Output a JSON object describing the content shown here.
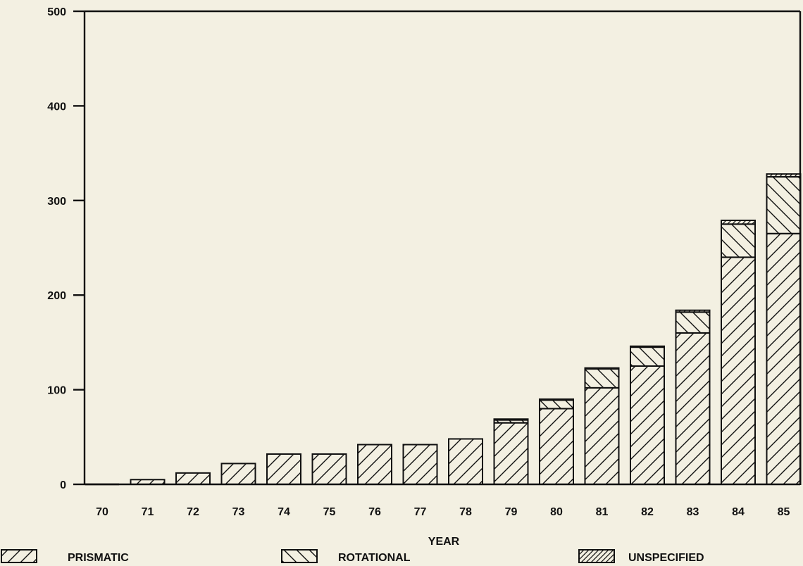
{
  "chart_data": {
    "type": "bar",
    "stacked": true,
    "title": "",
    "xlabel": "YEAR",
    "ylabel": "",
    "ylim": [
      0,
      500
    ],
    "yticks": [
      0,
      100,
      200,
      300,
      400,
      500
    ],
    "grid": false,
    "legend_position": "bottom",
    "categories": [
      "70",
      "71",
      "72",
      "73",
      "74",
      "75",
      "76",
      "77",
      "78",
      "79",
      "80",
      "81",
      "82",
      "83",
      "84",
      "85"
    ],
    "series": [
      {
        "name": "PRISMATIC",
        "pattern": "diagonal-forward",
        "values": [
          0,
          5,
          12,
          22,
          32,
          32,
          42,
          42,
          48,
          65,
          80,
          102,
          125,
          160,
          240,
          265
        ]
      },
      {
        "name": "ROTATIONAL",
        "pattern": "diagonal-back",
        "values": [
          0,
          0,
          0,
          0,
          0,
          0,
          0,
          0,
          0,
          3,
          9,
          20,
          20,
          22,
          35,
          60
        ]
      },
      {
        "name": "UNSPECIFIED",
        "pattern": "diagonal-dense",
        "values": [
          0,
          0,
          0,
          0,
          0,
          0,
          0,
          0,
          0,
          1,
          1,
          1,
          1,
          2,
          4,
          3
        ]
      }
    ],
    "colors": {
      "ink": "#111111",
      "background": "#f3f0e2"
    }
  }
}
